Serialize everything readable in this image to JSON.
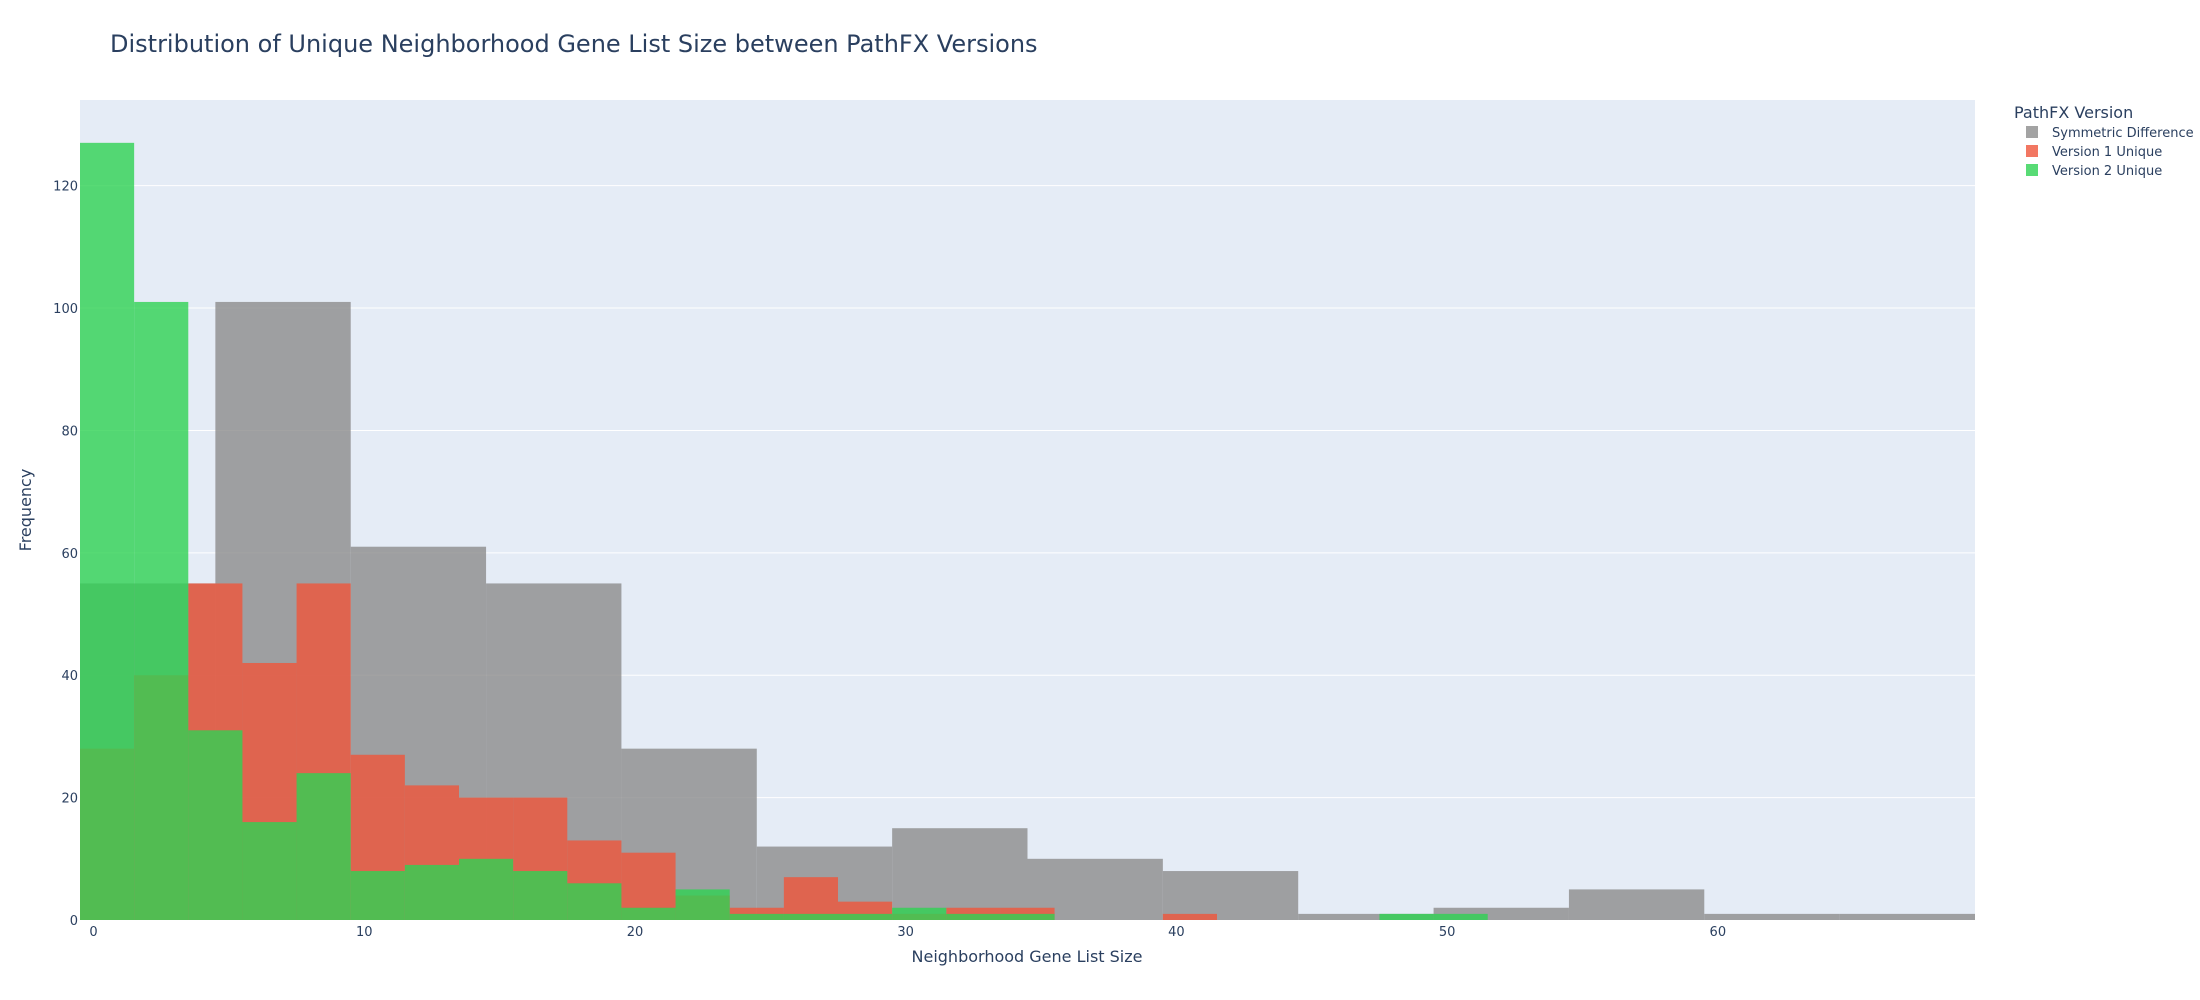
{
  "chart_data": {
    "type": "bar",
    "title": "Distribution of Unique Neighborhood Gene List Size between PathFX Versions",
    "xlabel": "Neighborhood Gene List Size",
    "ylabel": "Frequency",
    "xlim": [
      -0.5,
      69.5
    ],
    "ylim": [
      0,
      134
    ],
    "xticks": [
      0,
      10,
      20,
      30,
      40,
      50,
      60
    ],
    "yticks": [
      0,
      20,
      40,
      60,
      80,
      100,
      120
    ],
    "grid": true,
    "barmode": "overlay",
    "legend_title": "PathFX Version",
    "legend_position": "top-right-outside",
    "series": [
      {
        "name": "Symmetric Difference",
        "color": "#8c8c8c",
        "bins": [
          {
            "x0": -0.5,
            "x1": 4.5,
            "y": 55
          },
          {
            "x0": 4.5,
            "x1": 9.5,
            "y": 101
          },
          {
            "x0": 9.5,
            "x1": 14.5,
            "y": 61
          },
          {
            "x0": 14.5,
            "x1": 19.5,
            "y": 55
          },
          {
            "x0": 19.5,
            "x1": 24.5,
            "y": 28
          },
          {
            "x0": 24.5,
            "x1": 29.5,
            "y": 12
          },
          {
            "x0": 29.5,
            "x1": 34.5,
            "y": 15
          },
          {
            "x0": 34.5,
            "x1": 39.5,
            "y": 10
          },
          {
            "x0": 39.5,
            "x1": 44.5,
            "y": 8
          },
          {
            "x0": 44.5,
            "x1": 49.5,
            "y": 1
          },
          {
            "x0": 49.5,
            "x1": 54.5,
            "y": 2
          },
          {
            "x0": 54.5,
            "x1": 59.5,
            "y": 5
          },
          {
            "x0": 59.5,
            "x1": 64.5,
            "y": 1
          },
          {
            "x0": 64.5,
            "x1": 69.5,
            "y": 1
          }
        ]
      },
      {
        "name": "Version 1 Unique",
        "color": "#ef553b",
        "bins": [
          {
            "x0": -0.5,
            "x1": 1.5,
            "y": 28
          },
          {
            "x0": 1.5,
            "x1": 3.5,
            "y": 40
          },
          {
            "x0": 3.5,
            "x1": 5.5,
            "y": 55
          },
          {
            "x0": 5.5,
            "x1": 7.5,
            "y": 42
          },
          {
            "x0": 7.5,
            "x1": 9.5,
            "y": 55
          },
          {
            "x0": 9.5,
            "x1": 11.5,
            "y": 27
          },
          {
            "x0": 11.5,
            "x1": 13.5,
            "y": 22
          },
          {
            "x0": 13.5,
            "x1": 15.5,
            "y": 20
          },
          {
            "x0": 15.5,
            "x1": 17.5,
            "y": 20
          },
          {
            "x0": 17.5,
            "x1": 19.5,
            "y": 13
          },
          {
            "x0": 19.5,
            "x1": 21.5,
            "y": 11
          },
          {
            "x0": 21.5,
            "x1": 23.5,
            "y": 4
          },
          {
            "x0": 23.5,
            "x1": 25.5,
            "y": 2
          },
          {
            "x0": 25.5,
            "x1": 27.5,
            "y": 7
          },
          {
            "x0": 27.5,
            "x1": 29.5,
            "y": 3
          },
          {
            "x0": 29.5,
            "x1": 31.5,
            "y": 1
          },
          {
            "x0": 31.5,
            "x1": 33.5,
            "y": 2
          },
          {
            "x0": 33.5,
            "x1": 35.5,
            "y": 2
          },
          {
            "x0": 39.5,
            "x1": 41.5,
            "y": 1
          }
        ]
      },
      {
        "name": "Version 2 Unique",
        "color": "#2ed253",
        "bins": [
          {
            "x0": -0.5,
            "x1": 1.5,
            "y": 127
          },
          {
            "x0": 1.5,
            "x1": 3.5,
            "y": 101
          },
          {
            "x0": 3.5,
            "x1": 5.5,
            "y": 31
          },
          {
            "x0": 5.5,
            "x1": 7.5,
            "y": 16
          },
          {
            "x0": 7.5,
            "x1": 9.5,
            "y": 24
          },
          {
            "x0": 9.5,
            "x1": 11.5,
            "y": 8
          },
          {
            "x0": 11.5,
            "x1": 13.5,
            "y": 9
          },
          {
            "x0": 13.5,
            "x1": 15.5,
            "y": 10
          },
          {
            "x0": 15.5,
            "x1": 17.5,
            "y": 8
          },
          {
            "x0": 17.5,
            "x1": 19.5,
            "y": 6
          },
          {
            "x0": 19.5,
            "x1": 21.5,
            "y": 2
          },
          {
            "x0": 21.5,
            "x1": 23.5,
            "y": 5
          },
          {
            "x0": 23.5,
            "x1": 25.5,
            "y": 1
          },
          {
            "x0": 25.5,
            "x1": 27.5,
            "y": 1
          },
          {
            "x0": 27.5,
            "x1": 29.5,
            "y": 1
          },
          {
            "x0": 29.5,
            "x1": 31.5,
            "y": 2
          },
          {
            "x0": 31.5,
            "x1": 33.5,
            "y": 1
          },
          {
            "x0": 33.5,
            "x1": 35.5,
            "y": 1
          },
          {
            "x0": 47.5,
            "x1": 49.5,
            "y": 1
          },
          {
            "x0": 49.5,
            "x1": 51.5,
            "y": 1
          }
        ]
      }
    ]
  }
}
